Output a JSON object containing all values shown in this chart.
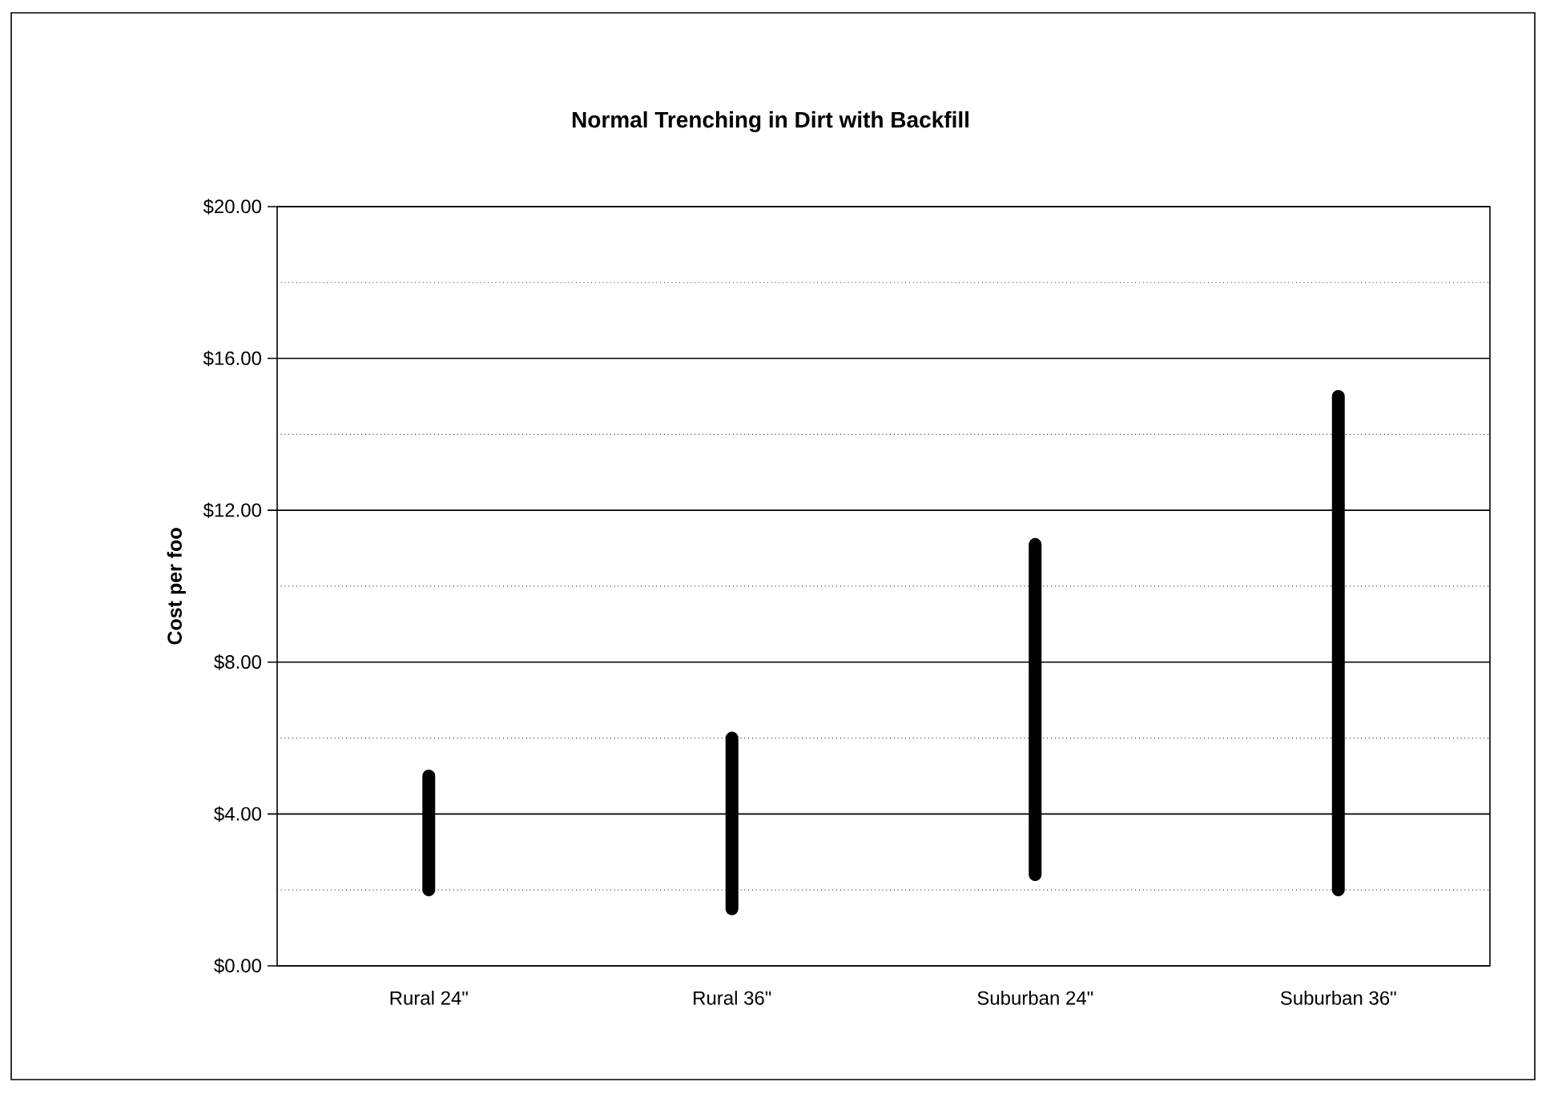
{
  "chart_data": {
    "type": "bar",
    "title": "Normal Trenching in Dirt with Backfill",
    "ylabel": "Cost per foo",
    "categories": [
      "Rural 24\"",
      "Rural 36\"",
      "Suburban 24\"",
      "Suburban 36\""
    ],
    "base": [
      2,
      1.5,
      2.4,
      2
    ],
    "values": [
      3,
      4.5,
      8.7,
      13
    ],
    "color": "#000000",
    "ylim": [
      0,
      20
    ],
    "yticks": [
      {
        "value": 0,
        "label": "$0.00"
      },
      {
        "value": 2,
        "label": null
      },
      {
        "value": 4,
        "label": "$4.00"
      },
      {
        "value": 6,
        "label": null
      },
      {
        "value": 8,
        "label": "$8.00"
      },
      {
        "value": 10,
        "label": null
      },
      {
        "value": 12,
        "label": "$12.00"
      },
      {
        "value": 14,
        "label": null
      },
      {
        "value": 16,
        "label": "$16.00"
      },
      {
        "value": 18,
        "label": null
      },
      {
        "value": 20,
        "label": "$20.00"
      }
    ],
    "grid": "y"
  }
}
